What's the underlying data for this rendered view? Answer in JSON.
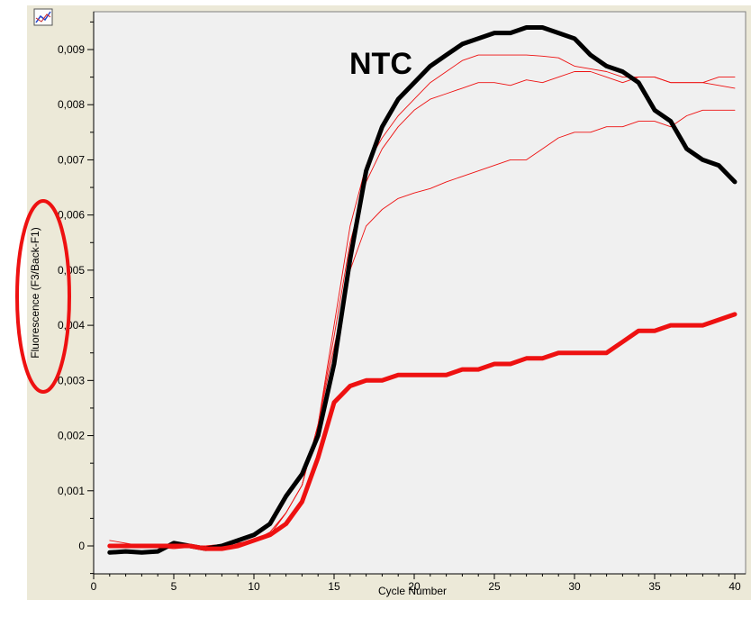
{
  "chart_data": {
    "type": "line",
    "xlabel": "Cycle Number",
    "ylabel": "Fluorescence (F3/Back-F1)",
    "xlim": [
      0,
      40
    ],
    "ylim": [
      -0.0005,
      0.0095
    ],
    "x_ticks": [
      {
        "value": 0,
        "label": "0"
      },
      {
        "value": 5,
        "label": "5"
      },
      {
        "value": 10,
        "label": "10"
      },
      {
        "value": 15,
        "label": "15"
      },
      {
        "value": 20,
        "label": "20"
      },
      {
        "value": 25,
        "label": "25"
      },
      {
        "value": 30,
        "label": "30"
      },
      {
        "value": 35,
        "label": "35"
      },
      {
        "value": 40,
        "label": "40"
      }
    ],
    "y_ticks": [
      {
        "value": 0,
        "label": "0"
      },
      {
        "value": 0.001,
        "label": "0,001"
      },
      {
        "value": 0.002,
        "label": "0,002"
      },
      {
        "value": 0.003,
        "label": "0,003"
      },
      {
        "value": 0.004,
        "label": "0,004"
      },
      {
        "value": 0.005,
        "label": "0,005"
      },
      {
        "value": 0.006,
        "label": "0,006"
      },
      {
        "value": 0.007,
        "label": "0,007"
      },
      {
        "value": 0.008,
        "label": "0,008"
      },
      {
        "value": 0.009,
        "label": "0,009"
      }
    ],
    "annotation": "NTC",
    "grid": false,
    "background": "#f0f0f0",
    "series": [
      {
        "color": "#ee1111",
        "width": 0.9,
        "points": [
          [
            1,
            0.0001
          ],
          [
            3,
            0.0
          ],
          [
            5,
            0.0
          ],
          [
            7,
            -5e-05
          ],
          [
            9,
            0.0
          ],
          [
            10,
            0.0001
          ],
          [
            11,
            0.0002
          ],
          [
            12,
            0.0006
          ],
          [
            13,
            0.0011
          ],
          [
            14,
            0.0022
          ],
          [
            15,
            0.004
          ],
          [
            16,
            0.0058
          ],
          [
            17,
            0.0069
          ],
          [
            18,
            0.0074
          ],
          [
            19,
            0.0078
          ],
          [
            20,
            0.0081
          ],
          [
            21,
            0.0084
          ],
          [
            22,
            0.0086
          ],
          [
            23,
            0.0088
          ],
          [
            24,
            0.0089
          ],
          [
            25,
            0.0089
          ],
          [
            26,
            0.0089
          ],
          [
            27,
            0.0089
          ],
          [
            28,
            0.00888
          ],
          [
            29,
            0.00885
          ],
          [
            30,
            0.0087
          ],
          [
            31,
            0.00865
          ],
          [
            32,
            0.0086
          ],
          [
            33,
            0.0085
          ],
          [
            34,
            0.0085
          ],
          [
            35,
            0.0085
          ],
          [
            36,
            0.0084
          ],
          [
            37,
            0.0084
          ],
          [
            38,
            0.0084
          ],
          [
            39,
            0.0085
          ],
          [
            40,
            0.0085
          ]
        ]
      },
      {
        "color": "#ee1111",
        "width": 0.9,
        "points": [
          [
            1,
            0.0
          ],
          [
            3,
            0.0
          ],
          [
            5,
            -5e-05
          ],
          [
            7,
            0.0
          ],
          [
            9,
            5e-05
          ],
          [
            10,
            0.0001
          ],
          [
            11,
            0.00025
          ],
          [
            12,
            0.0006
          ],
          [
            13,
            0.0011
          ],
          [
            14,
            0.0022
          ],
          [
            15,
            0.0038
          ],
          [
            16,
            0.0055
          ],
          [
            17,
            0.0066
          ],
          [
            18,
            0.0072
          ],
          [
            19,
            0.0076
          ],
          [
            20,
            0.0079
          ],
          [
            21,
            0.0081
          ],
          [
            22,
            0.0082
          ],
          [
            23,
            0.0083
          ],
          [
            24,
            0.0084
          ],
          [
            25,
            0.0084
          ],
          [
            26,
            0.00835
          ],
          [
            27,
            0.00845
          ],
          [
            28,
            0.0084
          ],
          [
            29,
            0.0085
          ],
          [
            30,
            0.0086
          ],
          [
            31,
            0.0086
          ],
          [
            32,
            0.0085
          ],
          [
            33,
            0.0084
          ],
          [
            34,
            0.0085
          ],
          [
            35,
            0.0085
          ],
          [
            36,
            0.0084
          ],
          [
            37,
            0.0084
          ],
          [
            38,
            0.0084
          ],
          [
            39,
            0.00835
          ],
          [
            40,
            0.0083
          ]
        ]
      },
      {
        "color": "#ee1111",
        "width": 0.9,
        "points": [
          [
            1,
            0.0
          ],
          [
            3,
            0.0
          ],
          [
            5,
            0.0
          ],
          [
            7,
            0.0
          ],
          [
            9,
            5e-05
          ],
          [
            10,
            0.0001
          ],
          [
            11,
            0.0002
          ],
          [
            12,
            0.0006
          ],
          [
            13,
            0.0011
          ],
          [
            14,
            0.0022
          ],
          [
            15,
            0.0036
          ],
          [
            16,
            0.005
          ],
          [
            17,
            0.0058
          ],
          [
            18,
            0.0061
          ],
          [
            19,
            0.0063
          ],
          [
            20,
            0.0064
          ],
          [
            21,
            0.00648
          ],
          [
            22,
            0.0066
          ],
          [
            23,
            0.0067
          ],
          [
            24,
            0.0068
          ],
          [
            25,
            0.0069
          ],
          [
            26,
            0.007
          ],
          [
            27,
            0.007
          ],
          [
            28,
            0.0072
          ],
          [
            29,
            0.0074
          ],
          [
            30,
            0.0075
          ],
          [
            31,
            0.0075
          ],
          [
            32,
            0.0076
          ],
          [
            33,
            0.0076
          ],
          [
            34,
            0.0077
          ],
          [
            35,
            0.0077
          ],
          [
            36,
            0.0076
          ],
          [
            37,
            0.0078
          ],
          [
            38,
            0.0079
          ],
          [
            39,
            0.0079
          ],
          [
            40,
            0.0079
          ]
        ]
      },
      {
        "color": "#000000",
        "width": 5,
        "points": [
          [
            1,
            -0.00012
          ],
          [
            2,
            -0.0001
          ],
          [
            3,
            -0.00012
          ],
          [
            4,
            -0.0001
          ],
          [
            5,
            5e-05
          ],
          [
            6,
            0.0
          ],
          [
            7,
            -5e-05
          ],
          [
            8,
            0.0
          ],
          [
            9,
            0.0001
          ],
          [
            10,
            0.0002
          ],
          [
            11,
            0.0004
          ],
          [
            12,
            0.0009
          ],
          [
            13,
            0.0013
          ],
          [
            14,
            0.002
          ],
          [
            15,
            0.0033
          ],
          [
            16,
            0.0052
          ],
          [
            17,
            0.0068
          ],
          [
            18,
            0.0076
          ],
          [
            19,
            0.0081
          ],
          [
            20,
            0.0084
          ],
          [
            21,
            0.0087
          ],
          [
            22,
            0.0089
          ],
          [
            23,
            0.0091
          ],
          [
            24,
            0.0092
          ],
          [
            25,
            0.0093
          ],
          [
            26,
            0.0093
          ],
          [
            27,
            0.0094
          ],
          [
            28,
            0.0094
          ],
          [
            29,
            0.0093
          ],
          [
            30,
            0.0092
          ],
          [
            31,
            0.0089
          ],
          [
            32,
            0.0087
          ],
          [
            33,
            0.0086
          ],
          [
            34,
            0.0084
          ],
          [
            35,
            0.0079
          ],
          [
            36,
            0.0077
          ],
          [
            37,
            0.0072
          ],
          [
            38,
            0.007
          ],
          [
            39,
            0.0069
          ],
          [
            40,
            0.0066
          ]
        ]
      },
      {
        "color": "#ee1111",
        "width": 5,
        "points": [
          [
            1,
            0.0
          ],
          [
            2,
            0.0
          ],
          [
            3,
            0.0
          ],
          [
            4,
            0.0
          ],
          [
            5,
            0.0
          ],
          [
            6,
            0.0
          ],
          [
            7,
            -5e-05
          ],
          [
            8,
            -5e-05
          ],
          [
            9,
            0.0
          ],
          [
            10,
            0.0001
          ],
          [
            11,
            0.0002
          ],
          [
            12,
            0.0004
          ],
          [
            13,
            0.0008
          ],
          [
            14,
            0.0016
          ],
          [
            15,
            0.0026
          ],
          [
            16,
            0.0029
          ],
          [
            17,
            0.003
          ],
          [
            18,
            0.003
          ],
          [
            19,
            0.0031
          ],
          [
            20,
            0.0031
          ],
          [
            21,
            0.0031
          ],
          [
            22,
            0.0031
          ],
          [
            23,
            0.0032
          ],
          [
            24,
            0.0032
          ],
          [
            25,
            0.0033
          ],
          [
            26,
            0.0033
          ],
          [
            27,
            0.0034
          ],
          [
            28,
            0.0034
          ],
          [
            29,
            0.0035
          ],
          [
            30,
            0.0035
          ],
          [
            31,
            0.0035
          ],
          [
            32,
            0.0035
          ],
          [
            33,
            0.0037
          ],
          [
            34,
            0.0039
          ],
          [
            35,
            0.0039
          ],
          [
            36,
            0.004
          ],
          [
            37,
            0.004
          ],
          [
            38,
            0.004
          ],
          [
            39,
            0.0041
          ],
          [
            40,
            0.0042
          ]
        ]
      }
    ]
  }
}
